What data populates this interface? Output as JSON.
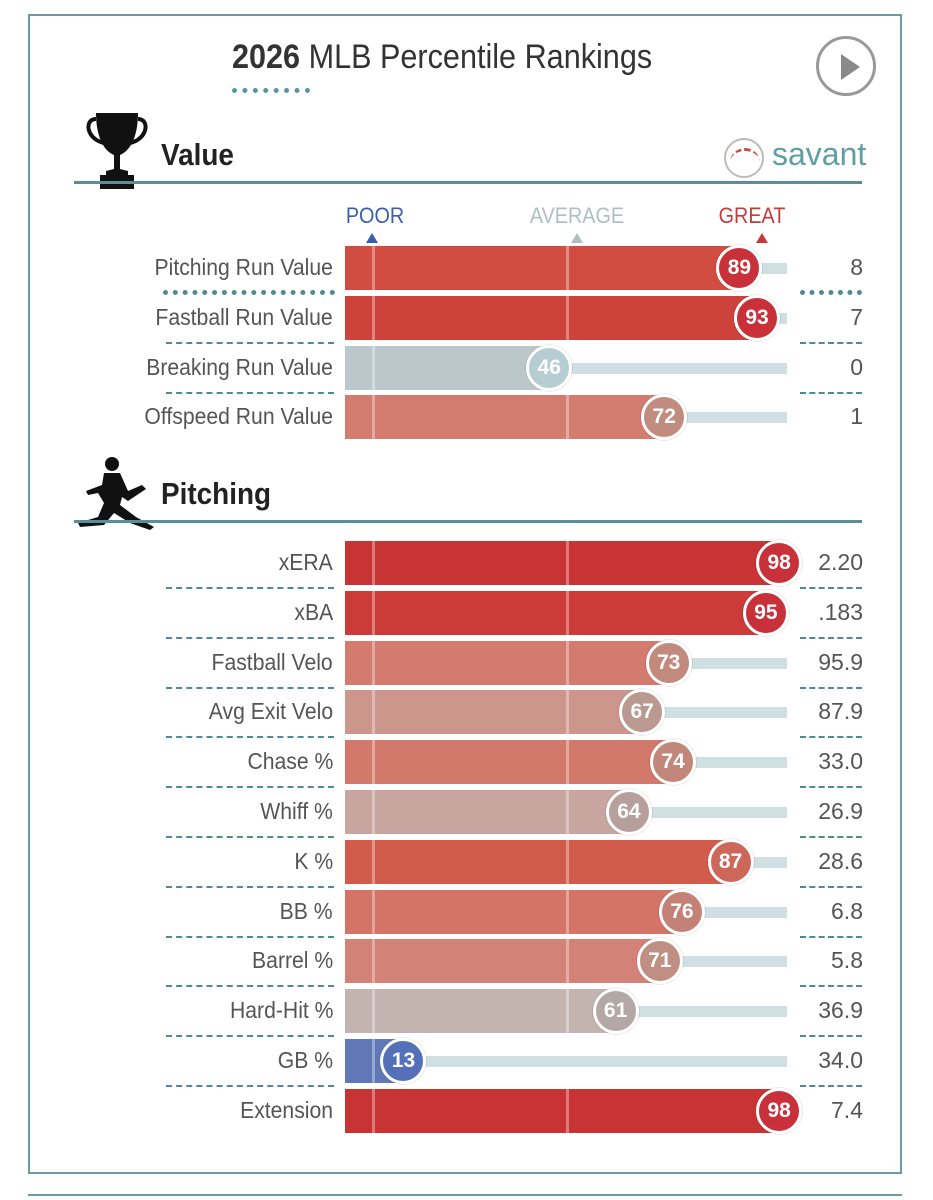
{
  "title": {
    "year": "2026",
    "text": "MLB Percentile Rankings"
  },
  "logo_text": "savant",
  "scale": {
    "poor": "POOR",
    "average": "AVERAGE",
    "great": "GREAT",
    "poor_color": "#3a5fa8",
    "average_color": "#aebfc4",
    "great_color": "#c53b3a"
  },
  "sections": [
    {
      "title": "Value",
      "icon": "trophy-icon"
    },
    {
      "title": "Pitching",
      "icon": "pitcher-icon"
    }
  ],
  "chart_data": {
    "type": "bar",
    "orientation": "horizontal",
    "xlim": [
      0,
      100
    ],
    "groups": [
      {
        "name": "Value",
        "rows": [
          {
            "label": "Pitching Run Value",
            "percentile": 89,
            "value": "8"
          },
          {
            "label": "Fastball Run Value",
            "percentile": 93,
            "value": "7"
          },
          {
            "label": "Breaking Run Value",
            "percentile": 46,
            "value": "0"
          },
          {
            "label": "Offspeed Run Value",
            "percentile": 72,
            "value": "1"
          }
        ]
      },
      {
        "name": "Pitching",
        "rows": [
          {
            "label": "xERA",
            "percentile": 98,
            "value": "2.20"
          },
          {
            "label": "xBA",
            "percentile": 95,
            "value": ".183"
          },
          {
            "label": "Fastball Velo",
            "percentile": 73,
            "value": "95.9"
          },
          {
            "label": "Avg Exit Velo",
            "percentile": 67,
            "value": "87.9"
          },
          {
            "label": "Chase %",
            "percentile": 74,
            "value": "33.0"
          },
          {
            "label": "Whiff %",
            "percentile": 64,
            "value": "26.9"
          },
          {
            "label": "K %",
            "percentile": 87,
            "value": "28.6"
          },
          {
            "label": "BB %",
            "percentile": 76,
            "value": "6.8"
          },
          {
            "label": "Barrel %",
            "percentile": 71,
            "value": "5.8"
          },
          {
            "label": "Hard-Hit %",
            "percentile": 61,
            "value": "36.9"
          },
          {
            "label": "GB %",
            "percentile": 13,
            "value": "34.0"
          },
          {
            "label": "Extension",
            "percentile": 98,
            "value": "7.4"
          }
        ]
      }
    ]
  }
}
